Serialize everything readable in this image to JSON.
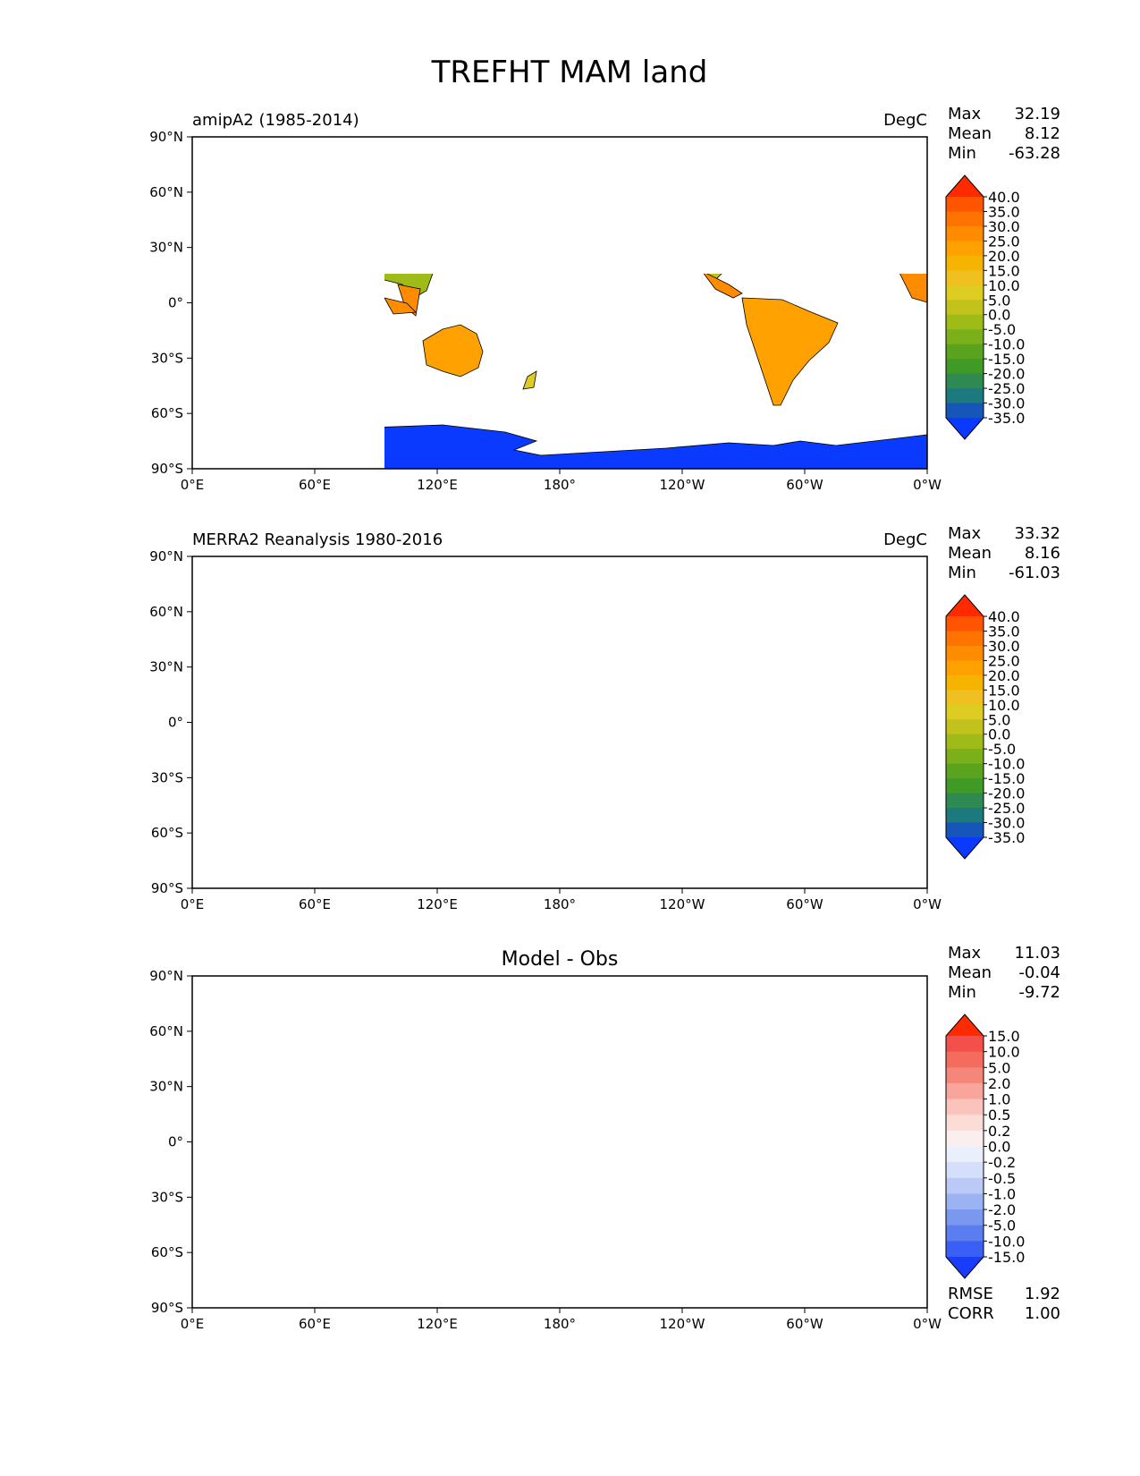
{
  "title": "TREFHT MAM land",
  "lat_ticks": [
    "90°N",
    "60°N",
    "30°N",
    "0°",
    "30°S",
    "60°S",
    "90°S"
  ],
  "lon_ticks": [
    "0°E",
    "60°E",
    "120°E",
    "180°",
    "120°W",
    "60°W",
    "0°W"
  ],
  "stat_labels": {
    "max": "Max",
    "mean": "Mean",
    "min": "Min",
    "rmse": "RMSE",
    "corr": "CORR"
  },
  "colors": {
    "ocean": "#ffffff",
    "coastline": "#000000"
  },
  "panels": [
    {
      "id": "test",
      "left_title": "amipA2 (1985-2014)",
      "center_title": "",
      "units": "DegC",
      "stats": {
        "max": "32.19",
        "mean": "8.12",
        "min": "-63.28"
      },
      "colorbar": {
        "levels": [
          "40.0",
          "35.0",
          "30.0",
          "25.0",
          "20.0",
          "15.0",
          "10.0",
          "5.0",
          "0.0",
          "-5.0",
          "-10.0",
          "-15.0",
          "-20.0",
          "-25.0",
          "-30.0",
          "-35.0"
        ],
        "colors": [
          "#ff2a00",
          "#ff5400",
          "#ff7300",
          "#ff8c00",
          "#ffa100",
          "#f5b400",
          "#f0c020",
          "#ddcc22",
          "#c2c21c",
          "#9ebb18",
          "#7cb01a",
          "#5aa31e",
          "#3f9a26",
          "#2f8a52",
          "#1c7a7e",
          "#1656b8",
          "#0b3aff"
        ]
      },
      "stats_rmse_corr": null
    },
    {
      "id": "ref",
      "left_title": "MERRA2 Reanalysis 1980-2016",
      "center_title": "",
      "units": "DegC",
      "stats": {
        "max": "33.32",
        "mean": "8.16",
        "min": "-61.03"
      },
      "colorbar": {
        "levels": [
          "40.0",
          "35.0",
          "30.0",
          "25.0",
          "20.0",
          "15.0",
          "10.0",
          "5.0",
          "0.0",
          "-5.0",
          "-10.0",
          "-15.0",
          "-20.0",
          "-25.0",
          "-30.0",
          "-35.0"
        ],
        "colors": [
          "#ff2a00",
          "#ff5400",
          "#ff7300",
          "#ff8c00",
          "#ffa100",
          "#f5b400",
          "#f0c020",
          "#ddcc22",
          "#c2c21c",
          "#9ebb18",
          "#7cb01a",
          "#5aa31e",
          "#3f9a26",
          "#2f8a52",
          "#1c7a7e",
          "#1656b8",
          "#0b3aff"
        ]
      },
      "stats_rmse_corr": null
    },
    {
      "id": "diff",
      "left_title": "",
      "center_title": "Model - Obs",
      "units": "",
      "stats": {
        "max": "11.03",
        "mean": "-0.04",
        "min": "-9.72"
      },
      "colorbar": {
        "levels": [
          "15.0",
          "10.0",
          "5.0",
          "2.0",
          "1.0",
          "0.5",
          "0.2",
          "0.0",
          "-0.2",
          "-0.5",
          "-1.0",
          "-2.0",
          "-5.0",
          "-10.0",
          "-15.0"
        ],
        "colors": [
          "#ff2a00",
          "#f4504b",
          "#f36c5e",
          "#f5867a",
          "#f8a59b",
          "#fac3bc",
          "#fcdcd7",
          "#fbeeee",
          "#eaf0fb",
          "#d5defa",
          "#bac9f6",
          "#9cb3f3",
          "#7b98f0",
          "#5a7df0",
          "#3a5ff5",
          "#1a3cfc"
        ]
      },
      "stats_rmse_corr": {
        "rmse": "1.92",
        "corr": "1.00"
      }
    }
  ],
  "panel_types": [
    "temperature",
    "temperature",
    "difference"
  ]
}
